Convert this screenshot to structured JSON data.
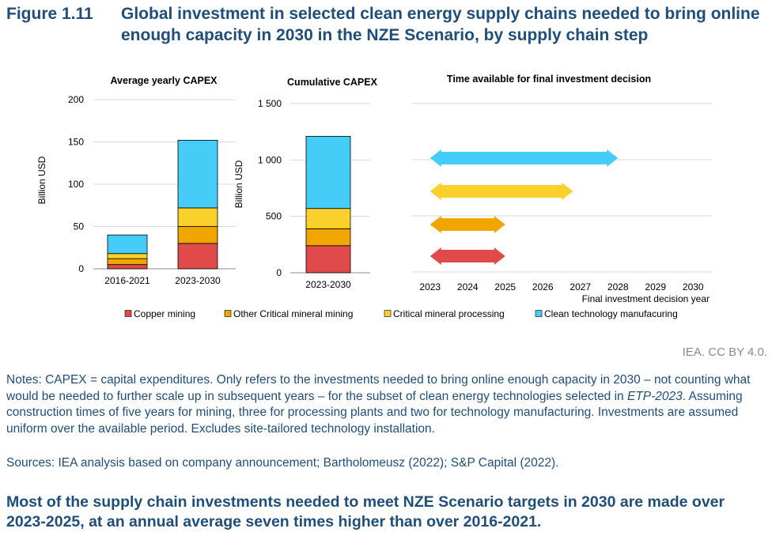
{
  "figure": {
    "label": "Figure 1.11",
    "title": "Global investment in selected clean energy supply chains needed to bring online enough capacity in 2030 in the NZE Scenario, by supply chain step"
  },
  "colors": {
    "copper": "#e04a4a",
    "other_mining": "#f0a500",
    "processing": "#fcd02a",
    "manufacturing": "#45cdf7",
    "axis_text": "#000000",
    "grid": "#d9d9d9"
  },
  "chart_data": [
    {
      "type": "bar",
      "stacked": true,
      "title": "Average yearly CAPEX",
      "ylabel": "Billion USD",
      "xlabel": "",
      "ylim": [
        0,
        200
      ],
      "yticks": [
        0,
        50,
        100,
        150,
        200
      ],
      "categories": [
        "2016-2021",
        "2023-2030"
      ],
      "series": [
        {
          "name": "Copper mining",
          "values": [
            5,
            30
          ]
        },
        {
          "name": "Other Critical mineral mining",
          "values": [
            7,
            20
          ]
        },
        {
          "name": "Critical mineral processing",
          "values": [
            6,
            22
          ]
        },
        {
          "name": "Clean technology manufacuring",
          "values": [
            22,
            80
          ]
        }
      ],
      "grid": true
    },
    {
      "type": "bar",
      "stacked": true,
      "title": "Cumulative CAPEX",
      "ylabel": "Billion USD",
      "xlabel": "",
      "ylim": [
        0,
        1500
      ],
      "yticks": [
        0,
        500,
        1000,
        1500
      ],
      "ytick_labels": [
        "0",
        "500",
        "1 000",
        "1 500"
      ],
      "categories": [
        "2023-2030"
      ],
      "series": [
        {
          "name": "Copper mining",
          "values": [
            240
          ]
        },
        {
          "name": "Other Critical mineral mining",
          "values": [
            150
          ]
        },
        {
          "name": "Critical mineral processing",
          "values": [
            180
          ]
        },
        {
          "name": "Clean technology manufacuring",
          "values": [
            640
          ]
        }
      ],
      "grid": true
    },
    {
      "type": "range",
      "title": "Time available for final investment decision",
      "xlabel": "Final investment decision year",
      "xticks": [
        2023,
        2024,
        2025,
        2026,
        2027,
        2028,
        2029,
        2030
      ],
      "ranges": [
        {
          "series": "Clean technology manufacuring",
          "start": 2023,
          "end": 2028
        },
        {
          "series": "Critical mineral processing",
          "start": 2023,
          "end": 2026.8
        },
        {
          "series": "Other Critical mineral mining",
          "start": 2023,
          "end": 2025
        },
        {
          "series": "Copper mining",
          "start": 2023,
          "end": 2025
        }
      ],
      "grid": true
    }
  ],
  "legend": {
    "position": "bottom",
    "items": [
      {
        "label": "Copper mining",
        "color_key": "copper"
      },
      {
        "label": "Other Critical mineral mining",
        "color_key": "other_mining"
      },
      {
        "label": "Critical mineral processing",
        "color_key": "processing"
      },
      {
        "label": "Clean technology manufacuring",
        "color_key": "manufacturing"
      }
    ]
  },
  "credit": "IEA. CC BY 4.0.",
  "notes": {
    "before": "Notes: CAPEX = capital expenditures. Only refers to the investments needed to bring online enough capacity in 2030 – not counting what would be needed to further scale up in subsequent years – for the subset of clean energy technologies selected in ",
    "italic": "ETP-2023",
    "after": ". Assuming construction times of five years for mining, three for processing plants and two for technology manufacturing. Investments are assumed uniform over the available period. Excludes site-tailored technology installation."
  },
  "sources": "Sources: IEA analysis based on company announcement; Bartholomeusz (2022); S&P Capital (2022).",
  "takeaway": "Most of the supply chain investments needed to meet NZE Scenario targets in 2030 are made over 2023-2025, at an annual average seven times higher than over 2016-2021."
}
